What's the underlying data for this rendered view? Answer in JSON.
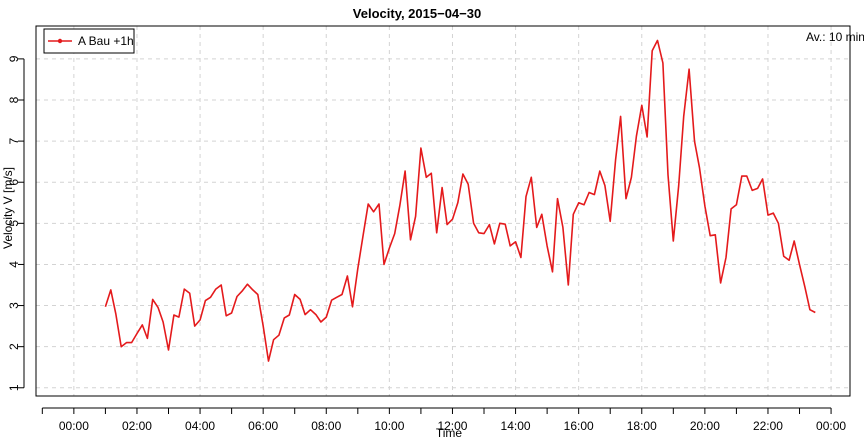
{
  "chart_data": {
    "type": "line",
    "title": "Velocity, 2015−04−30",
    "annotation": "Av.: 10 min",
    "xlabel": "Time",
    "ylabel": "Velocity V [m/s]",
    "xlim": [
      -1.2,
      24.6
    ],
    "ylim": [
      0.8,
      9.8
    ],
    "x_ticks": [
      0,
      2,
      4,
      6,
      8,
      10,
      12,
      14,
      16,
      18,
      20,
      22,
      24
    ],
    "x_tick_labels": [
      "00:00",
      "02:00",
      "04:00",
      "06:00",
      "08:00",
      "10:00",
      "12:00",
      "14:00",
      "16:00",
      "18:00",
      "20:00",
      "22:00",
      "00:00"
    ],
    "y_ticks": [
      1,
      2,
      3,
      4,
      5,
      6,
      7,
      8,
      9
    ],
    "y_tick_labels": [
      "1",
      "2",
      "3",
      "4",
      "5",
      "6",
      "7",
      "8",
      "9"
    ],
    "grid": true,
    "legend_position": "top-left",
    "series": [
      {
        "name": "A Bau +1h",
        "color": "#e41a1c",
        "x": [
          1.0,
          1.17,
          1.33,
          1.5,
          1.67,
          1.83,
          2.0,
          2.17,
          2.33,
          2.5,
          2.67,
          2.83,
          3.0,
          3.17,
          3.33,
          3.5,
          3.67,
          3.83,
          4.0,
          4.17,
          4.33,
          4.5,
          4.67,
          4.83,
          5.0,
          5.17,
          5.33,
          5.5,
          5.67,
          5.83,
          6.0,
          6.17,
          6.33,
          6.5,
          6.67,
          6.83,
          7.0,
          7.17,
          7.33,
          7.5,
          7.67,
          7.83,
          8.0,
          8.17,
          8.33,
          8.5,
          8.67,
          8.83,
          9.0,
          9.17,
          9.33,
          9.5,
          9.67,
          9.83,
          10.0,
          10.17,
          10.33,
          10.5,
          10.67,
          10.83,
          11.0,
          11.17,
          11.33,
          11.5,
          11.67,
          11.83,
          12.0,
          12.17,
          12.33,
          12.5,
          12.67,
          12.83,
          13.0,
          13.17,
          13.33,
          13.5,
          13.67,
          13.83,
          14.0,
          14.17,
          14.33,
          14.5,
          14.67,
          14.83,
          15.0,
          15.17,
          15.33,
          15.5,
          15.67,
          15.83,
          16.0,
          16.17,
          16.33,
          16.5,
          16.67,
          16.83,
          17.0,
          17.17,
          17.33,
          17.5,
          17.67,
          17.83,
          18.0,
          18.17,
          18.33,
          18.5,
          18.67,
          18.83,
          19.0,
          19.17,
          19.33,
          19.5,
          19.67,
          19.83,
          20.0,
          20.17,
          20.33,
          20.5,
          20.67,
          20.83,
          21.0,
          21.17,
          21.33,
          21.5,
          21.67,
          21.83,
          22.0,
          22.17,
          22.33,
          22.5,
          22.67,
          22.83,
          23.0,
          23.17,
          23.33,
          23.5
        ],
        "values": [
          2.97,
          3.38,
          2.8,
          2.0,
          2.1,
          2.1,
          2.32,
          2.53,
          2.2,
          3.15,
          2.95,
          2.6,
          1.92,
          2.77,
          2.72,
          3.4,
          3.3,
          2.5,
          2.65,
          3.12,
          3.2,
          3.4,
          3.5,
          2.75,
          2.82,
          3.22,
          3.35,
          3.52,
          3.38,
          3.27,
          2.5,
          1.65,
          2.17,
          2.28,
          2.7,
          2.77,
          3.27,
          3.15,
          2.78,
          2.9,
          2.78,
          2.6,
          2.72,
          3.13,
          3.2,
          3.27,
          3.72,
          2.97,
          3.9,
          4.72,
          5.47,
          5.28,
          5.47,
          4.0,
          4.4,
          4.75,
          5.43,
          6.27,
          4.6,
          5.17,
          6.83,
          6.12,
          6.22,
          4.77,
          5.87,
          4.97,
          5.1,
          5.5,
          6.2,
          5.95,
          5.0,
          4.77,
          4.75,
          4.97,
          4.5,
          5.0,
          4.98,
          4.45,
          4.55,
          4.17,
          5.65,
          6.12,
          4.9,
          5.22,
          4.45,
          3.82,
          5.6,
          4.9,
          3.5,
          5.22,
          5.5,
          5.45,
          5.75,
          5.7,
          6.27,
          5.92,
          5.05,
          6.55,
          7.6,
          5.6,
          6.12,
          7.12,
          7.87,
          7.1,
          9.2,
          9.45,
          8.9,
          6.18,
          4.57,
          5.92,
          7.6,
          8.75,
          7.0,
          6.35,
          5.42,
          4.7,
          4.72,
          3.55,
          4.17,
          5.35,
          5.45,
          6.15,
          6.15,
          5.8,
          5.85,
          6.08,
          5.2,
          5.25,
          5.0,
          4.2,
          4.1,
          4.57,
          4.0,
          3.45,
          2.9,
          2.83
        ]
      }
    ]
  }
}
